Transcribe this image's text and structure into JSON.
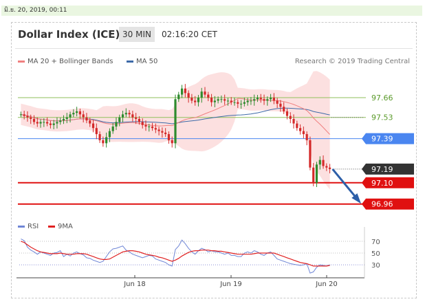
{
  "date_header": "มิ.ย. 20, 2019, 00:11",
  "title": "Dollar Index (ICE)",
  "timeframe": "30 MIN",
  "time": "02:16:20 CET",
  "legend": [
    {
      "label": "MA 20 + Bollinger Bands",
      "color": "#f08080"
    },
    {
      "label": "MA 50",
      "color": "#3d6aa8"
    }
  ],
  "credit": "Research © 2019 Trading Central",
  "rsi_legend": [
    {
      "label": "RSI",
      "color": "#6f86d6"
    },
    {
      "label": "9MA",
      "color": "#e02020"
    }
  ],
  "colors": {
    "up": "#2e8b2e",
    "down": "#d42a2a",
    "resistance": "#8fbf5a",
    "pivot": "#4a86f0",
    "support": "#e01010",
    "current": "#333333",
    "band_fill": "#fbdada",
    "ma20": "#f08080",
    "ma50": "#3d6aa8"
  },
  "chart_data": [
    {
      "type": "candlestick",
      "title": "Dollar Index (ICE)",
      "timeframe": "30 MIN",
      "x_ticks": [
        "Jun 18",
        "Jun 19",
        "Jun 20"
      ],
      "ylim": [
        96.9,
        97.85
      ],
      "levels": [
        {
          "value": 97.66,
          "label": "97.66",
          "kind": "resistance"
        },
        {
          "value": 97.53,
          "label": "97.53",
          "kind": "resistance"
        },
        {
          "value": 97.39,
          "label": "97.39",
          "kind": "pivot"
        },
        {
          "value": 97.19,
          "label": "97.19",
          "kind": "current"
        },
        {
          "value": 97.1,
          "label": "97.10",
          "kind": "support"
        },
        {
          "value": 96.96,
          "label": "96.96",
          "kind": "support"
        }
      ],
      "close_series": [
        97.55,
        97.54,
        97.53,
        97.52,
        97.5,
        97.49,
        97.5,
        97.5,
        97.49,
        97.48,
        97.49,
        97.5,
        97.51,
        97.52,
        97.53,
        97.55,
        97.56,
        97.57,
        97.55,
        97.53,
        97.51,
        97.49,
        97.46,
        97.42,
        97.38,
        97.36,
        97.4,
        97.44,
        97.47,
        97.5,
        97.53,
        97.55,
        97.56,
        97.55,
        97.53,
        97.52,
        97.5,
        97.48,
        97.47,
        97.47,
        97.46,
        97.45,
        97.44,
        97.43,
        97.42,
        97.38,
        97.36,
        97.65,
        97.68,
        97.72,
        97.69,
        97.66,
        97.64,
        97.63,
        97.66,
        97.7,
        97.68,
        97.66,
        97.63,
        97.64,
        97.65,
        97.65,
        97.64,
        97.64,
        97.63,
        97.63,
        97.62,
        97.62,
        97.63,
        97.64,
        97.64,
        97.65,
        97.66,
        97.65,
        97.64,
        97.65,
        97.66,
        97.64,
        97.62,
        97.6,
        97.57,
        97.54,
        97.52,
        97.49,
        97.46,
        97.44,
        97.42,
        97.38,
        97.2,
        97.1,
        97.22,
        97.25,
        97.21,
        97.2,
        97.19
      ]
    },
    {
      "type": "line",
      "title": "RSI",
      "ylim": [
        15,
        85
      ],
      "y_ticks": [
        70,
        50,
        30
      ],
      "series": [
        {
          "name": "RSI",
          "values": [
            74,
            71,
            60,
            55,
            52,
            48,
            52,
            50,
            48,
            46,
            50,
            51,
            54,
            44,
            48,
            45,
            50,
            52,
            49,
            47,
            42,
            41,
            38,
            36,
            34,
            36,
            44,
            52,
            57,
            58,
            60,
            62,
            55,
            52,
            48,
            46,
            44,
            42,
            44,
            46,
            45,
            40,
            38,
            36,
            34,
            30,
            28,
            56,
            62,
            72,
            66,
            58,
            52,
            48,
            54,
            58,
            56,
            52,
            54,
            52,
            52,
            50,
            48,
            50,
            46,
            46,
            44,
            44,
            50,
            52,
            50,
            54,
            52,
            48,
            46,
            50,
            52,
            46,
            40,
            38,
            36,
            34,
            32,
            31,
            30,
            29,
            30,
            32,
            16,
            18,
            26,
            30,
            29,
            28,
            30
          ]
        },
        {
          "name": "9MA",
          "values": [
            70,
            68,
            64,
            60,
            57,
            54,
            52,
            51,
            50,
            49,
            49,
            49,
            50,
            49,
            48,
            48,
            48,
            49,
            49,
            49,
            48,
            46,
            44,
            42,
            40,
            39,
            39,
            40,
            43,
            46,
            49,
            52,
            53,
            54,
            54,
            53,
            52,
            50,
            48,
            47,
            46,
            45,
            43,
            42,
            40,
            38,
            36,
            38,
            41,
            45,
            48,
            51,
            53,
            54,
            54,
            55,
            55,
            55,
            54,
            54,
            53,
            53,
            52,
            51,
            50,
            49,
            48,
            48,
            48,
            48,
            48,
            49,
            50,
            50,
            50,
            50,
            50,
            50,
            48,
            46,
            44,
            42,
            40,
            38,
            36,
            34,
            33,
            32,
            30,
            28,
            28,
            28,
            28,
            28,
            29
          ]
        }
      ]
    }
  ]
}
